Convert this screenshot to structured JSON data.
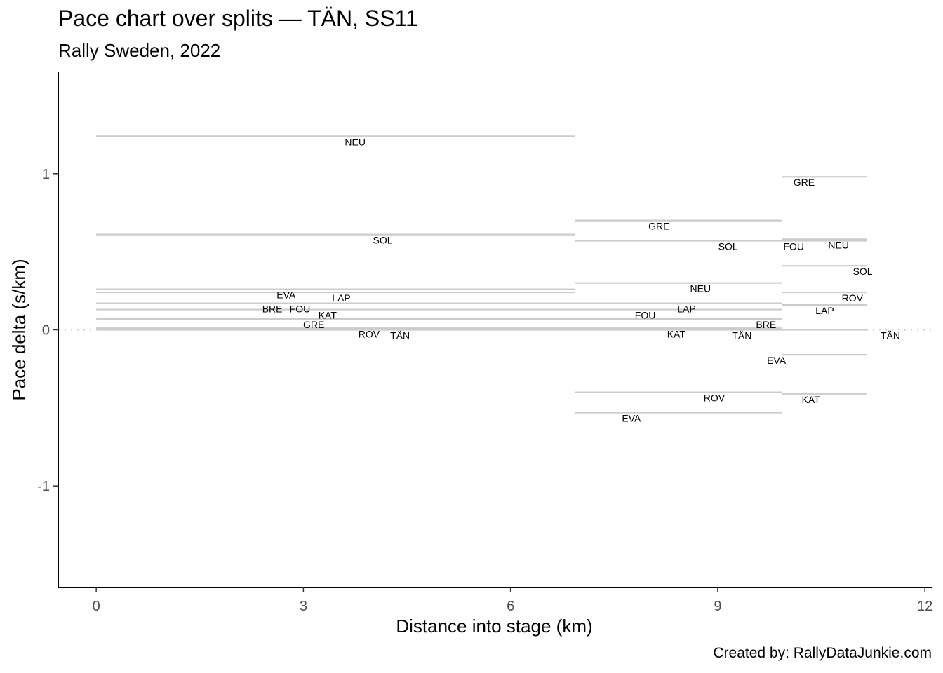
{
  "header": {
    "title": "Pace chart over splits — TÄN, SS11",
    "subtitle": "Rally Sweden, 2022"
  },
  "footer": {
    "caption": "Created by: RallyDataJunkie.com"
  },
  "chart_data": {
    "type": "line",
    "title": "Pace chart over splits — TÄN, SS11",
    "subtitle": "Rally Sweden, 2022",
    "xlabel": "Distance into stage (km)",
    "ylabel": "Pace delta (s/km)",
    "xlim": [
      -0.55,
      12.1
    ],
    "ylim": [
      1.65,
      -1.65
    ],
    "y_reversed": true,
    "xticks": [
      0,
      3,
      6,
      9,
      12
    ],
    "xtick_labels": [
      "0",
      "3",
      "6",
      "9",
      "12"
    ],
    "yticks": [
      -1,
      0,
      1
    ],
    "ytick_labels": [
      "-1",
      "0",
      "1"
    ],
    "reference_line": 0,
    "grid": false,
    "line_color": "#cccccc",
    "reference_color": "#cccccc",
    "splits": [
      {
        "start": 0,
        "end": 6.93
      },
      {
        "start": 6.93,
        "end": 9.93
      },
      {
        "start": 9.93,
        "end": 11.16
      }
    ],
    "segments": [
      {
        "driver": "BRE",
        "split": 1,
        "x": 2.55,
        "pace": 0.17
      },
      {
        "driver": "TÄN",
        "split": 1,
        "x": 4.4,
        "pace": 0
      },
      {
        "driver": "ROV",
        "split": 1,
        "x": 3.95,
        "pace": 0.01
      },
      {
        "driver": "GRE",
        "split": 1,
        "x": 3.15,
        "pace": 0.07
      },
      {
        "driver": "KAT",
        "split": 1,
        "x": 3.35,
        "pace": 0.13
      },
      {
        "driver": "FOU",
        "split": 1,
        "x": 2.95,
        "pace": 0.17
      },
      {
        "driver": "LAP",
        "split": 1,
        "x": 3.55,
        "pace": 0.24
      },
      {
        "driver": "EVA",
        "split": 1,
        "x": 2.75,
        "pace": 0.26
      },
      {
        "driver": "SOL",
        "split": 1,
        "x": 4.15,
        "pace": 0.61
      },
      {
        "driver": "NEU",
        "split": 1,
        "x": 3.75,
        "pace": 1.24
      },
      {
        "driver": "EVA",
        "split": 2,
        "x": 7.75,
        "pace": -0.53
      },
      {
        "driver": "ROV",
        "split": 2,
        "x": 8.95,
        "pace": -0.4
      },
      {
        "driver": "TÄN",
        "split": 2,
        "x": 9.35,
        "pace": 0
      },
      {
        "driver": "KAT",
        "split": 2,
        "x": 8.4,
        "pace": 0.01
      },
      {
        "driver": "BRE",
        "split": 2,
        "x": 9.7,
        "pace": 0.07
      },
      {
        "driver": "FOU",
        "split": 2,
        "x": 7.95,
        "pace": 0.13
      },
      {
        "driver": "LAP",
        "split": 2,
        "x": 8.55,
        "pace": 0.17
      },
      {
        "driver": "NEU",
        "split": 2,
        "x": 8.75,
        "pace": 0.3
      },
      {
        "driver": "SOL",
        "split": 2,
        "x": 9.15,
        "pace": 0.57
      },
      {
        "driver": "GRE",
        "split": 2,
        "x": 8.15,
        "pace": 0.7
      },
      {
        "driver": "KAT",
        "split": 3,
        "x": 10.35,
        "pace": -0.41
      },
      {
        "driver": "EVA",
        "split": 3,
        "x": 9.85,
        "pace": -0.16
      },
      {
        "driver": "TÄN",
        "split": 3,
        "x": 11.5,
        "pace": 0
      },
      {
        "driver": "LAP",
        "split": 3,
        "x": 10.55,
        "pace": 0.16
      },
      {
        "driver": "ROV",
        "split": 3,
        "x": 10.95,
        "pace": 0.24
      },
      {
        "driver": "SOL",
        "split": 3,
        "x": 11.1,
        "pace": 0.41
      },
      {
        "driver": "FOU",
        "split": 3,
        "x": 10.1,
        "pace": 0.57
      },
      {
        "driver": "NEU",
        "split": 3,
        "x": 10.75,
        "pace": 0.58
      },
      {
        "driver": "GRE",
        "split": 3,
        "x": 10.25,
        "pace": 0.98
      }
    ]
  }
}
